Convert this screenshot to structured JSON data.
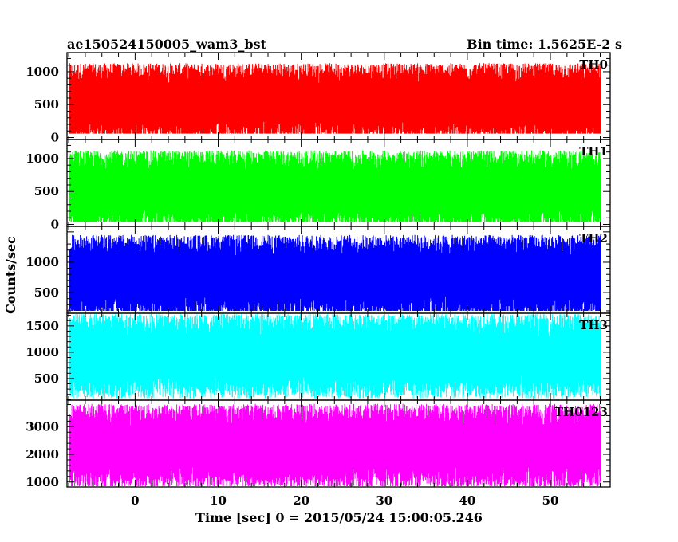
{
  "header": {
    "title": "ae150524150005_wam3_bst",
    "bin_time": "Bin time: 1.5625E-2 s"
  },
  "chart_data": {
    "type": "line",
    "xlabel": "Time [sec] 0 = 2015/05/24 15:00:05.246",
    "ylabel": "Counts/sec",
    "xlim": [
      -8.2,
      57.2
    ],
    "data_x_range": [
      -7.9,
      56.1
    ],
    "bin_time": 0.015625,
    "x_ticks": [
      0,
      10,
      20,
      30,
      40,
      50
    ],
    "panels": [
      {
        "name": "TH0",
        "color": "#ff0000",
        "ylim": [
          -30,
          1290
        ],
        "y_ticks": [
          0,
          500,
          1000
        ],
        "approx_level": 540,
        "approx_min": 60,
        "approx_max": 1240
      },
      {
        "name": "TH1",
        "color": "#00ff00",
        "ylim": [
          -30,
          1290
        ],
        "y_ticks": [
          0,
          500,
          1000
        ],
        "approx_level": 520,
        "approx_min": 40,
        "approx_max": 1250
      },
      {
        "name": "TH2",
        "color": "#0000ff",
        "ylim": [
          160,
          1590
        ],
        "y_ticks": [
          500,
          1000
        ],
        "approx_level": 760,
        "approx_min": 200,
        "approx_max": 1580
      },
      {
        "name": "TH3",
        "color": "#00ffff",
        "ylim": [
          90,
          1740
        ],
        "y_ticks": [
          500,
          1000,
          1500
        ],
        "approx_level": 930,
        "approx_min": 110,
        "approx_max": 1720
      },
      {
        "name": "TH0123",
        "color": "#ff00ff",
        "ylim": [
          820,
          3960
        ],
        "y_ticks": [
          1000,
          2000,
          3000
        ],
        "approx_level": 2300,
        "approx_min": 850,
        "approx_max": 3900
      }
    ]
  }
}
